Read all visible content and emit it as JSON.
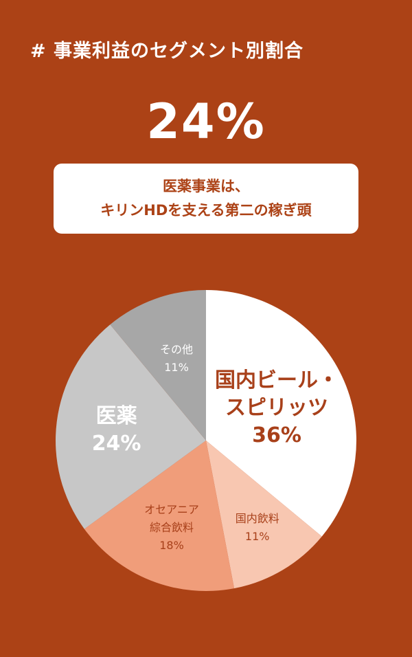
{
  "header": {
    "title": "# 事業利益のセグメント別割合",
    "highlight_value": "24%"
  },
  "callout": {
    "line1": "医薬事業は、",
    "line2": "キリンHDを支える第二の稼ぎ頭"
  },
  "colors": {
    "background": "#ac4216",
    "accent": "#ac4216"
  },
  "chart_data": {
    "type": "pie",
    "slices": [
      {
        "label": [
          "国内ビール・",
          "スピリッツ"
        ],
        "pct_text": "36%",
        "value": 36,
        "color": "#ffffff",
        "text_color": "#a8401a",
        "bold": true
      },
      {
        "label": [
          "国内飲料"
        ],
        "pct_text": "11%",
        "value": 11,
        "color": "#f8c7b1",
        "text_color": "#a8401a",
        "bold": false
      },
      {
        "label": [
          "オセアニア",
          "綜合飲料"
        ],
        "pct_text": "18%",
        "value": 18,
        "color": "#f09d7a",
        "text_color": "#a8401a",
        "bold": false
      },
      {
        "label": [
          "医薬"
        ],
        "pct_text": "24%",
        "value": 24,
        "color": "#c7c7c7",
        "text_color": "#ffffff",
        "bold": true
      },
      {
        "label": [
          "その他"
        ],
        "pct_text": "11%",
        "value": 11,
        "color": "#a7a7a7",
        "text_color": "#ffffff",
        "bold": false
      }
    ]
  }
}
